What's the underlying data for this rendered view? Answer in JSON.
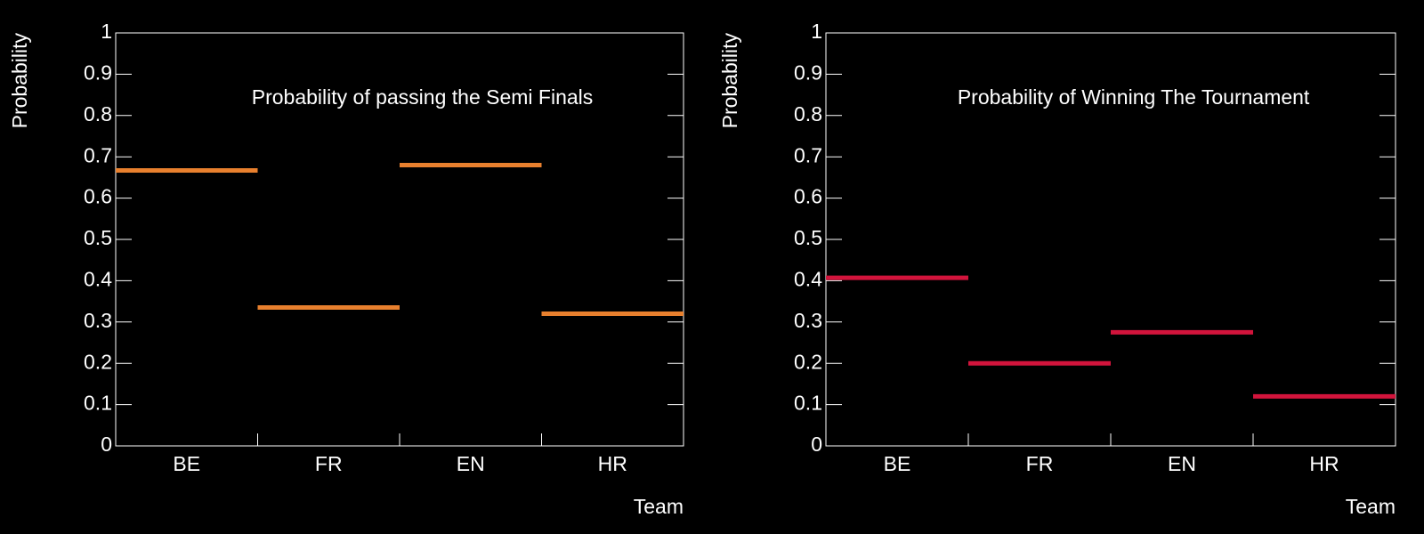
{
  "chart_data": [
    {
      "type": "bar",
      "title": "Probability of passing the Semi Finals",
      "x_label": "Team",
      "y_label": "Probability",
      "categories": [
        "BE",
        "FR",
        "EN",
        "HR"
      ],
      "values": [
        0.667,
        0.335,
        0.68,
        0.32
      ],
      "color": "#e8802e",
      "ylim": [
        0,
        1
      ],
      "yticks": [
        0,
        0.1,
        0.2,
        0.3,
        0.4,
        0.5,
        0.6,
        0.7,
        0.8,
        0.9,
        1
      ]
    },
    {
      "type": "bar",
      "title": "Probability of Winning The Tournament",
      "x_label": "Team",
      "y_label": "Probability",
      "categories": [
        "BE",
        "FR",
        "EN",
        "HR"
      ],
      "values": [
        0.407,
        0.2,
        0.275,
        0.12
      ],
      "color": "#d2143c",
      "ylim": [
        0,
        1
      ],
      "yticks": [
        0,
        0.1,
        0.2,
        0.3,
        0.4,
        0.5,
        0.6,
        0.7,
        0.8,
        0.9,
        1
      ]
    }
  ]
}
